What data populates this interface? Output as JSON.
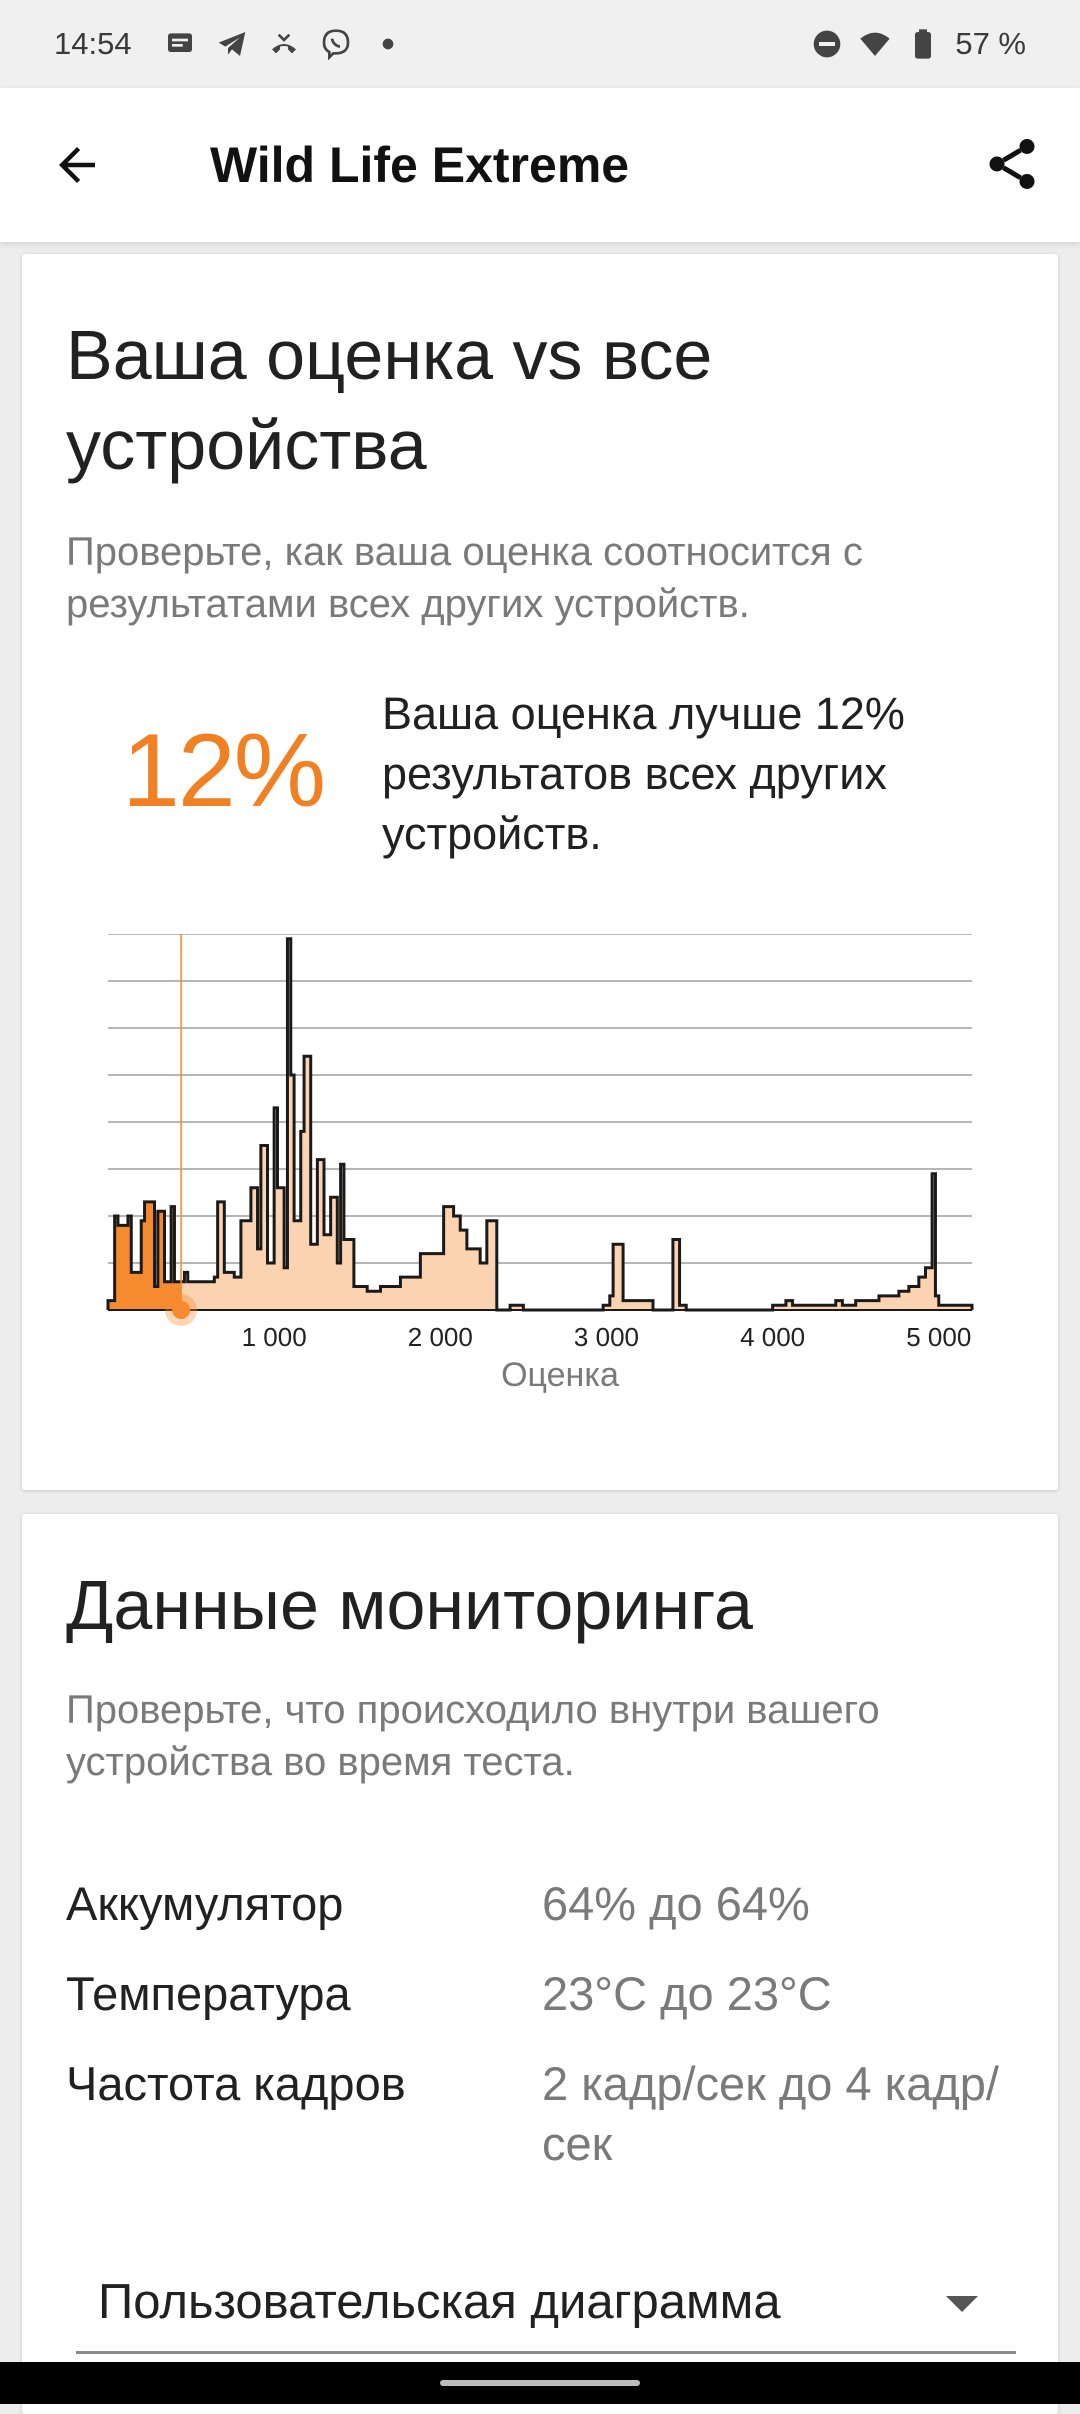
{
  "status_bar": {
    "time": "14:54",
    "battery_text": "57 %"
  },
  "app_bar": {
    "title": "Wild Life Extreme"
  },
  "comparison": {
    "heading": "Ваша оценка vs все устройства",
    "subtitle": "Проверьте, как ваша оценка соотносится с результатами всех других устройств.",
    "percent": "12%",
    "percent_description": "Ваша оценка лучше 12% результатов всех других устройств.",
    "accent_color": "#f08022"
  },
  "chart_data": {
    "type": "area",
    "xlabel": "Оценка",
    "x_ticks": [
      "1 000",
      "2 000",
      "3 000",
      "4 000",
      "5 000"
    ],
    "xlim": [
      0,
      5200
    ],
    "ylim": [
      0,
      8
    ],
    "your_score": 440,
    "x": [
      0,
      40,
      60,
      120,
      140,
      200,
      220,
      280,
      300,
      340,
      360,
      380,
      400,
      440,
      460,
      480,
      500,
      560,
      640,
      660,
      700,
      760,
      800,
      860,
      900,
      920,
      960,
      1000,
      1020,
      1060,
      1080,
      1100,
      1120,
      1160,
      1180,
      1220,
      1260,
      1300,
      1340,
      1380,
      1400,
      1420,
      1480,
      1520,
      1560,
      1640,
      1760,
      1880,
      2020,
      2080,
      2120,
      2160,
      2240,
      2280,
      2340,
      2380,
      2420,
      2500,
      2600,
      2800,
      2900,
      2980,
      3020,
      3040,
      3100,
      3280,
      3320,
      3400,
      3440,
      3480,
      3540,
      3560,
      3600,
      3800,
      4000,
      4080,
      4120,
      4200,
      4300,
      4380,
      4420,
      4500,
      4560,
      4640,
      4700,
      4760,
      4820,
      4880,
      4920,
      4960,
      4980,
      5000,
      5020,
      5060,
      5080,
      5120,
      5160,
      5200
    ],
    "y": [
      0.2,
      2.0,
      1.8,
      2.0,
      0.8,
      1.9,
      2.3,
      0.5,
      2.1,
      0.6,
      0.6,
      2.2,
      0.6,
      0.6,
      0.8,
      0.6,
      0.6,
      0.6,
      0.7,
      2.3,
      0.8,
      0.7,
      1.9,
      2.6,
      1.3,
      3.5,
      1.0,
      4.3,
      2.6,
      0.9,
      7.9,
      5.0,
      1.9,
      3.8,
      5.4,
      1.4,
      3.2,
      1.6,
      2.4,
      1.0,
      3.1,
      1.5,
      0.5,
      0.5,
      0.4,
      0.5,
      0.7,
      1.2,
      2.2,
      2.0,
      1.7,
      1.3,
      1.0,
      1.9,
      0.0,
      0.0,
      0.1,
      0.0,
      0.0,
      0.0,
      0.0,
      0.1,
      0.3,
      1.4,
      0.2,
      0.0,
      0.0,
      1.5,
      0.1,
      0.0,
      0.0,
      0.0,
      0.0,
      0.0,
      0.1,
      0.2,
      0.1,
      0.1,
      0.1,
      0.2,
      0.1,
      0.2,
      0.2,
      0.3,
      0.3,
      0.4,
      0.5,
      0.7,
      0.9,
      2.9,
      0.3,
      0.1,
      0.1,
      0.1,
      0.1,
      0.1,
      0.1,
      0.1
    ],
    "fill_color": "#fcd3b1",
    "your_area_color": "#f58a2e",
    "line_color": "#1a1a1a",
    "marker_color": "#f58a2e",
    "grid": true
  },
  "monitoring": {
    "heading": "Данные мониторинга",
    "subtitle": "Проверьте, что происходило внутри вашего устройства во время теста.",
    "rows": [
      {
        "label": "Аккумулятор",
        "value": "64% до 64%"
      },
      {
        "label": "Температура",
        "value": "23°C до 23°C"
      },
      {
        "label": "Частота кадров",
        "value": "2 кадр/сек до 4 кадр/сек"
      }
    ],
    "dropdown_value": "Пользовательская диаграмма"
  }
}
